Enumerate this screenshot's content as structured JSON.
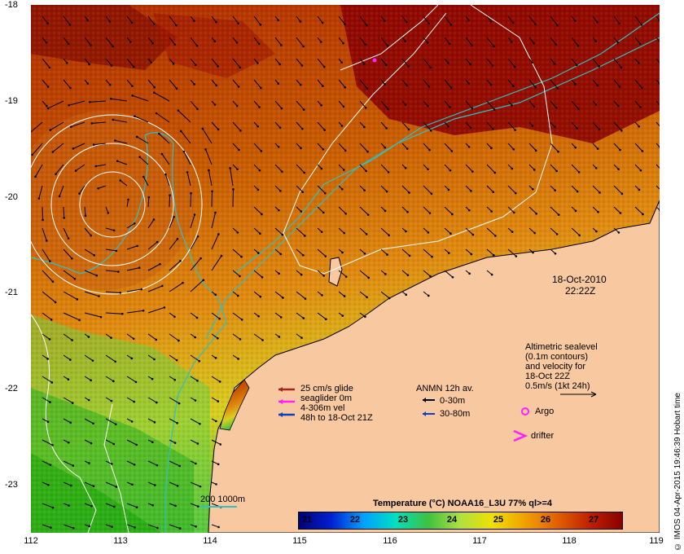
{
  "date_label": "18-Oct-2010",
  "time_label": "22:22Z",
  "y_ticks": [
    "-18",
    "-19",
    "-20",
    "-21",
    "-22",
    "-23"
  ],
  "x_ticks": [
    "112",
    "113",
    "114",
    "115",
    "116",
    "117",
    "118",
    "119"
  ],
  "legend_glider": {
    "line1": "25 cm/s glide",
    "line2": "seaglider 0m",
    "line3": "4-306m vel",
    "line4": "48h to 18-Oct 21Z",
    "colors": [
      "#a0281e",
      "#ff20ff",
      "#1040c0"
    ]
  },
  "legend_anmn": {
    "title": "ANMN 12h av.",
    "row1": "0-30m",
    "row2": "30-80m",
    "colors": [
      "#000000",
      "#1040c0"
    ]
  },
  "legend_altimetry": {
    "line1": "Altimetric sealevel",
    "line2": "(0.1m contours)",
    "line3": "and velocity for",
    "line4": "18-Oct 22Z",
    "line5": "0.5m/s (1kt 24h)"
  },
  "legend_argo": "Argo",
  "legend_drifter": "drifter",
  "legend_isobath": "200  1000m",
  "colorbar": {
    "title": "Temperature (°C) NOAA16_L3U 77% ql>=4",
    "ticks": [
      "21",
      "22",
      "23",
      "24",
      "25",
      "26",
      "27"
    ],
    "colors": [
      "#00007a",
      "#0020d0",
      "#00a0ff",
      "#00e0c0",
      "#40c040",
      "#b0e040",
      "#f0e000",
      "#f0a000",
      "#e06000",
      "#c02000",
      "#8a0000"
    ]
  },
  "credit": "© IMOS 04-Apr-2015 19:46:39 Hobart time",
  "accent": {
    "land": "#f8c8a0",
    "isobath": "#30c0c0",
    "contour": "#ffffff"
  }
}
